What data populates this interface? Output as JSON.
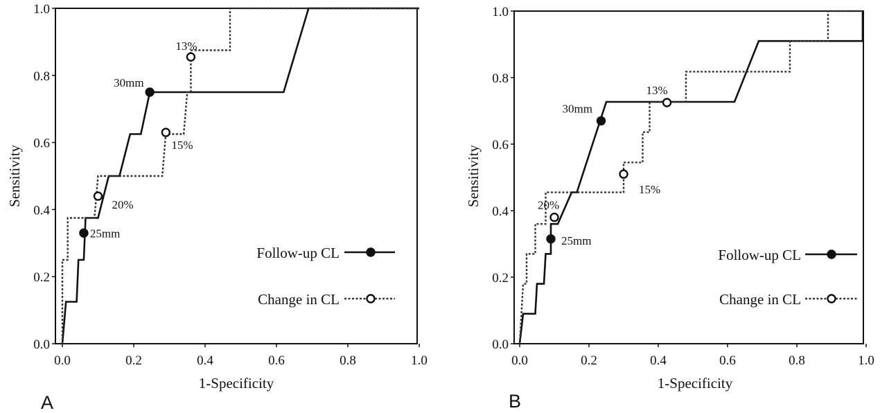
{
  "chart_data": [
    {
      "type": "line",
      "panel_label": "A",
      "xlabel": "1-Specificity",
      "ylabel": "Sensitivity",
      "xlim": [
        0,
        1
      ],
      "ylim": [
        0,
        1
      ],
      "xticks": [
        "0.0",
        "0.2",
        "0.4",
        "0.6",
        "0.8",
        "1.0"
      ],
      "yticks": [
        "0.0",
        "0.2",
        "0.4",
        "0.6",
        "0.8",
        "1.0"
      ],
      "grid": false,
      "legend_position": "bottom-right",
      "series": [
        {
          "name": "Follow-up CL",
          "style": "solid",
          "marker": "filled-circle",
          "points": [
            [
              0,
              0
            ],
            [
              0.01,
              0.125
            ],
            [
              0.04,
              0.125
            ],
            [
              0.045,
              0.25
            ],
            [
              0.06,
              0.25
            ],
            [
              0.065,
              0.375
            ],
            [
              0.1,
              0.375
            ],
            [
              0.13,
              0.5
            ],
            [
              0.16,
              0.5
            ],
            [
              0.19,
              0.625
            ],
            [
              0.22,
              0.625
            ],
            [
              0.245,
              0.75
            ],
            [
              0.62,
              0.75
            ],
            [
              0.69,
              1.0
            ],
            [
              1.0,
              1.0
            ]
          ],
          "markers": [
            {
              "x": 0.06,
              "y": 0.33,
              "label": "25mm"
            },
            {
              "x": 0.245,
              "y": 0.75,
              "label": "30mm"
            }
          ]
        },
        {
          "name": "Change in CL",
          "style": "dotted",
          "marker": "open-circle",
          "points": [
            [
              0,
              0
            ],
            [
              0,
              0.25
            ],
            [
              0.015,
              0.25
            ],
            [
              0.015,
              0.375
            ],
            [
              0.09,
              0.375
            ],
            [
              0.1,
              0.5
            ],
            [
              0.28,
              0.5
            ],
            [
              0.29,
              0.625
            ],
            [
              0.34,
              0.625
            ],
            [
              0.35,
              0.75
            ],
            [
              0.36,
              0.75
            ],
            [
              0.36,
              0.875
            ],
            [
              0.47,
              0.875
            ],
            [
              0.47,
              1.0
            ],
            [
              1.0,
              1.0
            ]
          ],
          "markers": [
            {
              "x": 0.1,
              "y": 0.44,
              "label": "20%"
            },
            {
              "x": 0.29,
              "y": 0.63,
              "label": "15%"
            },
            {
              "x": 0.36,
              "y": 0.855,
              "label": "13%"
            }
          ]
        }
      ]
    },
    {
      "type": "line",
      "panel_label": "B",
      "xlabel": "1-Specificity",
      "ylabel": "Sensitivity",
      "xlim": [
        0,
        1
      ],
      "ylim": [
        0,
        1
      ],
      "xticks": [
        "0.0",
        "0.2",
        "0.4",
        "0.6",
        "0.8",
        "1.0"
      ],
      "yticks": [
        "0.0",
        "0.2",
        "0.4",
        "0.6",
        "0.8",
        "1.0"
      ],
      "grid": false,
      "legend_position": "bottom-right",
      "series": [
        {
          "name": "Follow-up CL",
          "style": "solid",
          "marker": "filled-circle",
          "points": [
            [
              0,
              0
            ],
            [
              0.01,
              0.09
            ],
            [
              0.045,
              0.09
            ],
            [
              0.05,
              0.18
            ],
            [
              0.07,
              0.18
            ],
            [
              0.075,
              0.27
            ],
            [
              0.09,
              0.27
            ],
            [
              0.09,
              0.36
            ],
            [
              0.11,
              0.36
            ],
            [
              0.15,
              0.455
            ],
            [
              0.165,
              0.455
            ],
            [
              0.25,
              0.727
            ],
            [
              0.62,
              0.727
            ],
            [
              0.69,
              0.91
            ],
            [
              0.99,
              0.91
            ],
            [
              0.99,
              1.0
            ]
          ],
          "markers": [
            {
              "x": 0.09,
              "y": 0.315,
              "label": "25mm"
            },
            {
              "x": 0.235,
              "y": 0.67,
              "label": "30mm"
            }
          ]
        },
        {
          "name": "Change in CL",
          "style": "dotted",
          "marker": "open-circle",
          "points": [
            [
              0,
              0
            ],
            [
              0.01,
              0.18
            ],
            [
              0.02,
              0.18
            ],
            [
              0.02,
              0.27
            ],
            [
              0.045,
              0.27
            ],
            [
              0.045,
              0.36
            ],
            [
              0.075,
              0.36
            ],
            [
              0.075,
              0.455
            ],
            [
              0.09,
              0.455
            ],
            [
              0.09,
              0.455
            ],
            [
              0.3,
              0.455
            ],
            [
              0.3,
              0.545
            ],
            [
              0.355,
              0.545
            ],
            [
              0.355,
              0.636
            ],
            [
              0.375,
              0.636
            ],
            [
              0.375,
              0.727
            ],
            [
              0.48,
              0.727
            ],
            [
              0.48,
              0.818
            ],
            [
              0.78,
              0.818
            ],
            [
              0.78,
              0.91
            ],
            [
              0.89,
              0.91
            ],
            [
              0.89,
              1.0
            ],
            [
              0.99,
              1.0
            ]
          ],
          "markers": [
            {
              "x": 0.1,
              "y": 0.38,
              "label": "20%"
            },
            {
              "x": 0.3,
              "y": 0.51,
              "label": "15%"
            },
            {
              "x": 0.425,
              "y": 0.725,
              "label": "13%"
            }
          ]
        }
      ]
    }
  ]
}
